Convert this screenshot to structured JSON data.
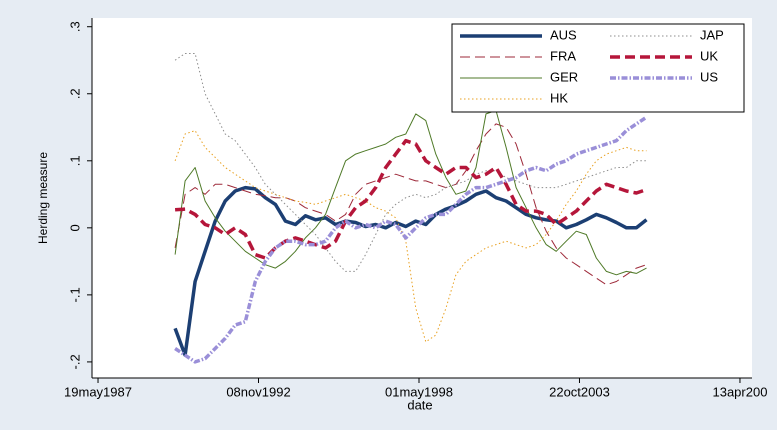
{
  "chart_data": {
    "type": "line",
    "xlabel": "date",
    "ylabel": "Herding measure",
    "x": [
      10960,
      11085,
      11210,
      11335,
      11460,
      11585,
      11710,
      11835,
      11960,
      12085,
      12210,
      12335,
      12460,
      12585,
      12710,
      12835,
      12960,
      13085,
      13210,
      13335,
      13460,
      13585,
      13710,
      13835,
      13960,
      14085,
      14210,
      14335,
      14460,
      14585,
      14710,
      14835,
      14960,
      15085,
      15210,
      15335,
      15460,
      15585,
      15710,
      15835,
      15960,
      16085,
      16210,
      16335,
      16460,
      16585,
      16710,
      16835
    ],
    "xlim": [
      9925,
      18150
    ],
    "xticks": [
      {
        "value": 10000,
        "label": "19may1987"
      },
      {
        "value": 12000,
        "label": "08nov1992"
      },
      {
        "value": 14000,
        "label": "01may1998"
      },
      {
        "value": 16000,
        "label": "22oct2003"
      },
      {
        "value": 18000,
        "label": "13apr200"
      }
    ],
    "ylim": [
      -0.224,
      0.313
    ],
    "yticks": [
      {
        "value": -0.2,
        "label": "-.2"
      },
      {
        "value": -0.1,
        "label": "-.1"
      },
      0,
      {
        "value": 0.1,
        "label": ".1"
      },
      {
        "value": 0.2,
        "label": ".2"
      },
      {
        "value": 0.3,
        "label": ".3"
      }
    ],
    "grid": false,
    "legend": "top-right",
    "series": [
      {
        "name": "AUS",
        "color": "#1c3f73",
        "linestyle": "solid",
        "linewidth": 3.5,
        "values": [
          -0.15,
          -0.19,
          -0.08,
          -0.035,
          0.01,
          0.04,
          0.055,
          0.06,
          0.058,
          0.045,
          0.035,
          0.01,
          0.005,
          0.018,
          0.012,
          0.015,
          0.005,
          0.01,
          0.008,
          0.002,
          0.005,
          0,
          0.008,
          0.002,
          0.01,
          0.005,
          0.02,
          0.028,
          0.033,
          0.04,
          0.05,
          0.055,
          0.045,
          0.04,
          0.03,
          0.02,
          0.015,
          0.012,
          0.01,
          0,
          0.005,
          0.012,
          0.02,
          0.015,
          0.008,
          0,
          0,
          0.012
        ]
      },
      {
        "name": "FRA",
        "color": "#9e2a3a",
        "linestyle": "dashed",
        "linewidth": 1,
        "values": [
          -0.03,
          0.05,
          0.06,
          0.05,
          0.065,
          0.065,
          0.06,
          0.055,
          0.05,
          0.048,
          0.045,
          0.045,
          0.04,
          0.03,
          0.025,
          0.02,
          0.01,
          0.02,
          0.05,
          0.065,
          0.07,
          0.075,
          0.08,
          0.075,
          0.07,
          0.07,
          0.065,
          0.06,
          0.065,
          0.085,
          0.115,
          0.14,
          0.155,
          0.15,
          0.125,
          0.08,
          0.03,
          -0.005,
          -0.03,
          -0.045,
          -0.055,
          -0.065,
          -0.075,
          -0.085,
          -0.08,
          -0.07,
          -0.06,
          -0.055
        ]
      },
      {
        "name": "GER",
        "color": "#4f7a28",
        "linestyle": "solid",
        "linewidth": 1,
        "values": [
          -0.04,
          0.07,
          0.09,
          0.04,
          0.015,
          -0.005,
          -0.02,
          -0.035,
          -0.045,
          -0.055,
          -0.06,
          -0.05,
          -0.035,
          -0.015,
          0,
          0.02,
          0.06,
          0.1,
          0.11,
          0.115,
          0.12,
          0.125,
          0.135,
          0.14,
          0.17,
          0.16,
          0.11,
          0.075,
          0.05,
          0.055,
          0.09,
          0.17,
          0.175,
          0.12,
          0.06,
          0.03,
          0,
          -0.025,
          -0.035,
          -0.02,
          -0.005,
          -0.01,
          -0.045,
          -0.065,
          -0.07,
          -0.065,
          -0.068,
          -0.06
        ]
      },
      {
        "name": "HK",
        "color": "#e8a020",
        "linestyle": "dotted",
        "linewidth": 1,
        "values": [
          0.1,
          0.14,
          0.145,
          0.12,
          0.105,
          0.09,
          0.08,
          0.07,
          0.06,
          0.055,
          0.05,
          0.045,
          0.04,
          0.038,
          0.035,
          0.04,
          0.045,
          0.05,
          0.045,
          0.04,
          0.03,
          0.025,
          0.015,
          -0.02,
          -0.12,
          -0.17,
          -0.16,
          -0.12,
          -0.07,
          -0.05,
          -0.04,
          -0.03,
          -0.025,
          -0.02,
          -0.025,
          -0.03,
          -0.025,
          -0.01,
          0.01,
          0.035,
          0.055,
          0.08,
          0.1,
          0.11,
          0.115,
          0.12,
          0.115,
          0.115
        ]
      },
      {
        "name": "JAP",
        "color": "#8c8c8c",
        "linestyle": "dotted",
        "linewidth": 1,
        "values": [
          0.25,
          0.26,
          0.26,
          0.2,
          0.17,
          0.14,
          0.13,
          0.11,
          0.09,
          0.065,
          0.05,
          0.035,
          0.02,
          0.005,
          -0.01,
          -0.03,
          -0.05,
          -0.065,
          -0.065,
          -0.04,
          -0.01,
          0.02,
          0.035,
          0.045,
          0.05,
          0.045,
          0.05,
          0.06,
          0.065,
          0.07,
          0.08,
          0.085,
          0.085,
          0.075,
          0.07,
          0.065,
          0.06,
          0.06,
          0.06,
          0.065,
          0.07,
          0.075,
          0.08,
          0.085,
          0.09,
          0.09,
          0.1,
          0.1
        ]
      },
      {
        "name": "UK",
        "color": "#b5163a",
        "linestyle": "dashed",
        "linewidth": 3.5,
        "values": [
          0.027,
          0.028,
          0.02,
          0.005,
          0,
          -0.01,
          0,
          -0.01,
          -0.04,
          -0.045,
          -0.03,
          -0.02,
          -0.015,
          -0.02,
          -0.025,
          -0.03,
          -0.02,
          0.01,
          0.03,
          0.04,
          0.06,
          0.09,
          0.11,
          0.13,
          0.125,
          0.1,
          0.09,
          0.08,
          0.09,
          0.09,
          0.075,
          0.08,
          0.09,
          0.065,
          0.035,
          0.025,
          0.025,
          0.02,
          0.005,
          0.015,
          0.025,
          0.04,
          0.055,
          0.065,
          0.06,
          0.055,
          0.052,
          0.057
        ]
      },
      {
        "name": "US",
        "color": "#9a8fd8",
        "linestyle": "dashdot",
        "linewidth": 3.5,
        "values": [
          -0.18,
          -0.19,
          -0.2,
          -0.195,
          -0.18,
          -0.165,
          -0.145,
          -0.14,
          -0.08,
          -0.05,
          -0.03,
          -0.02,
          -0.02,
          -0.025,
          -0.025,
          -0.02,
          0,
          0.01,
          0,
          0.005,
          0,
          0.01,
          0.005,
          -0.015,
          0,
          0.015,
          0.02,
          0.02,
          0.035,
          0.05,
          0.06,
          0.06,
          0.065,
          0.07,
          0.075,
          0.085,
          0.09,
          0.085,
          0.095,
          0.1,
          0.11,
          0.115,
          0.12,
          0.125,
          0.13,
          0.145,
          0.155,
          0.165
        ]
      }
    ]
  }
}
